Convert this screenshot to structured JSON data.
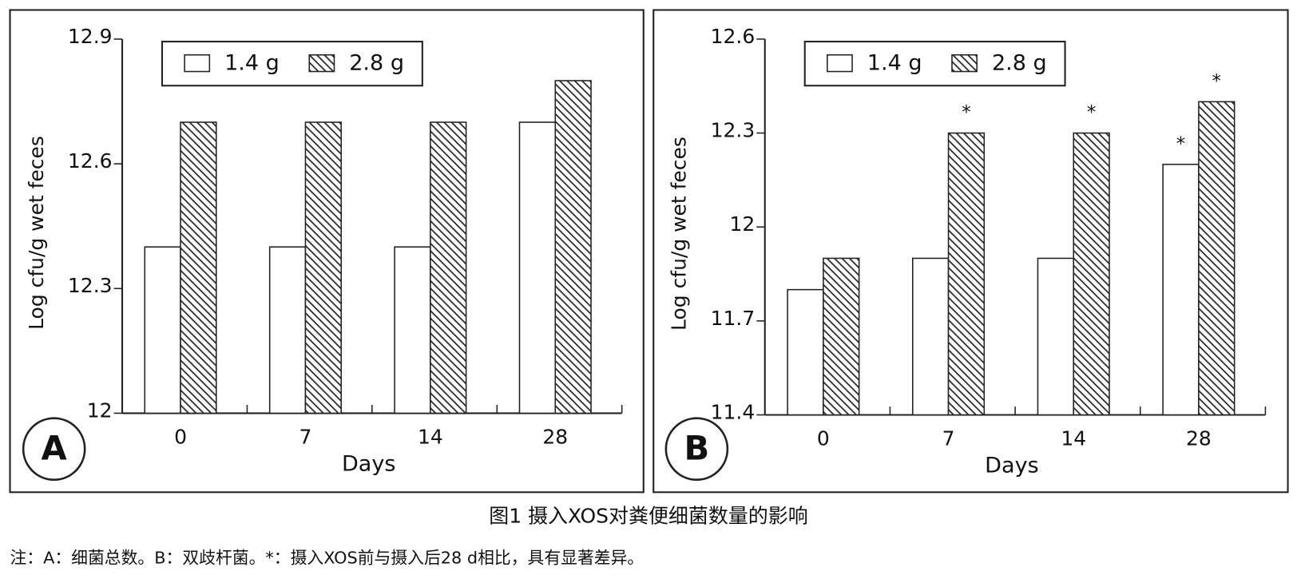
{
  "chart_data": [
    {
      "type": "bar",
      "panel_label": "A",
      "y_label": "Log cfu/g wet feces",
      "x_label": "Days",
      "categories": [
        "0",
        "7",
        "14",
        "28"
      ],
      "series": [
        {
          "name": "1.4 g",
          "color": "#ffffff",
          "values": [
            12.4,
            12.4,
            12.4,
            12.7
          ]
        },
        {
          "name": "2.8 g",
          "color": "#ffffff",
          "pattern": "hatch",
          "values": [
            12.7,
            12.7,
            12.7,
            12.8
          ]
        }
      ],
      "ylim": [
        12,
        12.9
      ],
      "yticks": [
        12,
        12.3,
        12.6,
        12.9
      ],
      "legend": "top-left"
    },
    {
      "type": "bar",
      "panel_label": "B",
      "y_label": "Log cfu/g wet feces",
      "x_label": "Days",
      "categories": [
        "0",
        "7",
        "14",
        "28"
      ],
      "series": [
        {
          "name": "1.4 g",
          "color": "#ffffff",
          "values": [
            11.8,
            11.9,
            11.9,
            12.2
          ]
        },
        {
          "name": "2.8 g",
          "color": "#ffffff",
          "pattern": "hatch",
          "values": [
            11.9,
            12.3,
            12.3,
            12.4
          ]
        }
      ],
      "ylim": [
        11.4,
        12.6
      ],
      "yticks": [
        11.4,
        11.7,
        12,
        12.3,
        12.6
      ],
      "legend": "top-left",
      "annotations": [
        {
          "text": "*",
          "x": "7",
          "series": "2.8 g"
        },
        {
          "text": "*",
          "x": "14",
          "series": "2.8 g"
        },
        {
          "text": "*",
          "x": "28",
          "series": "1.4 g"
        },
        {
          "text": "*",
          "x": "28",
          "series": "2.8 g"
        }
      ]
    }
  ],
  "caption": "图1 摄入XOS对粪便细菌数量的影响",
  "note": "注：A：细菌总数。B：双歧杆菌。*：摄入XOS前与摄入后28 d相比，具有显著差异。"
}
